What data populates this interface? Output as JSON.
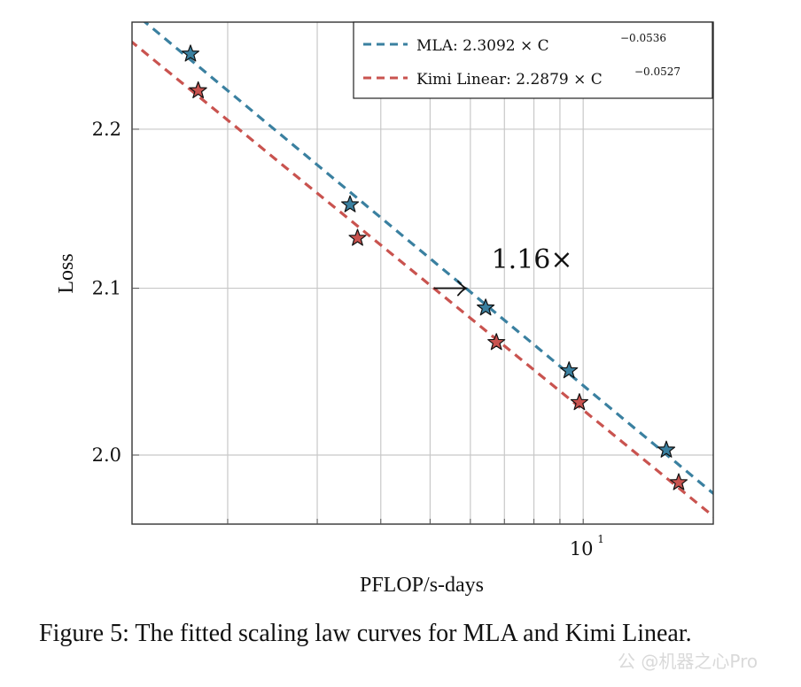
{
  "chart_data": {
    "type": "scatter",
    "title": "",
    "xlabel": "PFLOP/s-days",
    "ylabel": "Loss",
    "xscale": "log",
    "yscale": "log",
    "xlim": [
      1.297,
      18.02
    ],
    "ylim": [
      1.96,
      2.27
    ],
    "grid": true,
    "x_major_ticks": [
      {
        "value": 10,
        "label": "10",
        "exponent": "1"
      }
    ],
    "x_minor_ticks": [
      2,
      3,
      4,
      5,
      6,
      7,
      8,
      9,
      10
    ],
    "y_ticks": [
      {
        "value": 2.0,
        "label": "2.0"
      },
      {
        "value": 2.1,
        "label": "2.1"
      },
      {
        "value": 2.2,
        "label": "2.2"
      }
    ],
    "legend_position": "top-right",
    "series": [
      {
        "name": "MLA",
        "legend_label": "MLA: 2.3092 × C",
        "legend_exponent": "−0.0536",
        "color": "#3a80a0",
        "fit": {
          "a": 2.3092,
          "b": -0.0536
        },
        "points": [
          {
            "x": 1.69,
            "y": 2.249
          },
          {
            "x": 3.48,
            "y": 2.152
          },
          {
            "x": 6.43,
            "y": 2.088
          },
          {
            "x": 9.38,
            "y": 2.05
          },
          {
            "x": 14.57,
            "y": 2.003
          }
        ]
      },
      {
        "name": "Kimi Linear",
        "legend_label": "Kimi Linear: 2.2879 × C",
        "legend_exponent": "−0.0527",
        "color": "#c9534f",
        "fit": {
          "a": 2.2879,
          "b": -0.0527
        },
        "points": [
          {
            "x": 1.75,
            "y": 2.225
          },
          {
            "x": 3.6,
            "y": 2.131
          },
          {
            "x": 6.75,
            "y": 2.067
          },
          {
            "x": 9.83,
            "y": 2.031
          },
          {
            "x": 15.41,
            "y": 1.984
          }
        ]
      }
    ],
    "annotation": {
      "text": "1.16×",
      "arrow_at_loss": 2.1,
      "arrow_from_x": 5.085,
      "arrow_to_x": 5.882,
      "text_x": 6.6,
      "text_y": 2.115
    }
  },
  "caption": "Figure 5: The fitted scaling law curves for MLA and Kimi Linear.",
  "watermark": "公 @机器之心Pro"
}
